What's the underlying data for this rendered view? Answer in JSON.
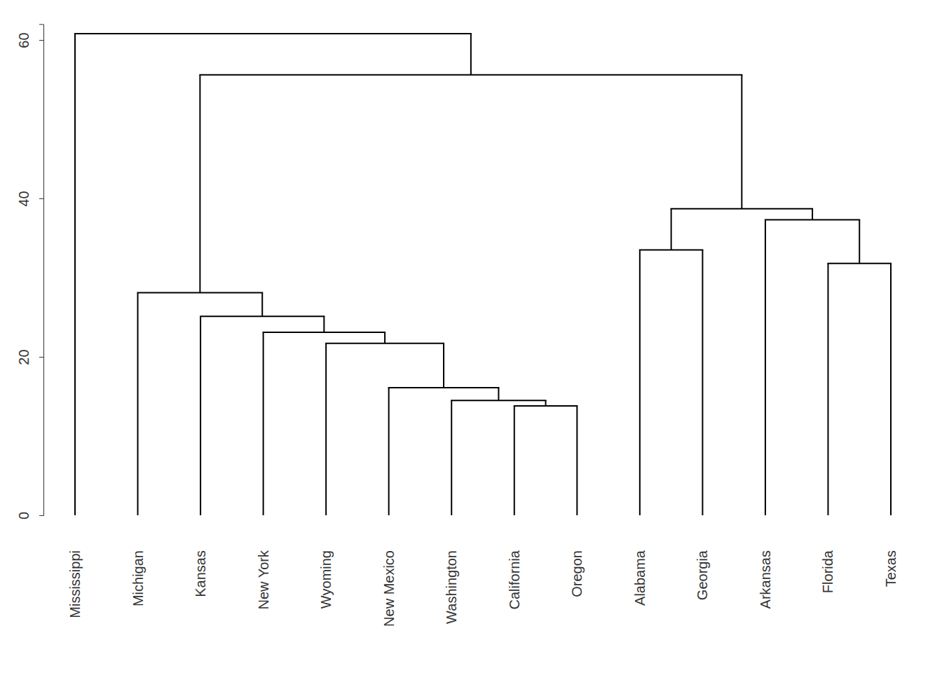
{
  "chart_data": {
    "type": "dendrogram",
    "ylim": [
      0,
      62
    ],
    "yticks": [
      0,
      20,
      40,
      60
    ],
    "tree": {
      "height": 60.8,
      "children": [
        {
          "label": "Mississippi"
        },
        {
          "height": 55.6,
          "children": [
            {
              "height": 28.1,
              "children": [
                {
                  "label": "Michigan"
                },
                {
                  "height": 25.1,
                  "children": [
                    {
                      "label": "Kansas"
                    },
                    {
                      "height": 23.1,
                      "children": [
                        {
                          "label": "New York"
                        },
                        {
                          "height": 21.7,
                          "children": [
                            {
                              "label": "Wyoming"
                            },
                            {
                              "height": 16.1,
                              "children": [
                                {
                                  "label": "New Mexico"
                                },
                                {
                                  "height": 14.5,
                                  "children": [
                                    {
                                      "label": "Washington"
                                    },
                                    {
                                      "height": 13.8,
                                      "children": [
                                        {
                                          "label": "California"
                                        },
                                        {
                                          "label": "Oregon"
                                        }
                                      ]
                                    }
                                  ]
                                }
                              ]
                            }
                          ]
                        }
                      ]
                    }
                  ]
                }
              ]
            },
            {
              "height": 38.7,
              "children": [
                {
                  "height": 33.5,
                  "children": [
                    {
                      "label": "Alabama"
                    },
                    {
                      "label": "Georgia"
                    }
                  ]
                },
                {
                  "height": 37.3,
                  "children": [
                    {
                      "label": "Arkansas"
                    },
                    {
                      "height": 31.8,
                      "children": [
                        {
                          "label": "Florida"
                        },
                        {
                          "label": "Texas"
                        }
                      ]
                    }
                  ]
                }
              ]
            }
          ]
        }
      ]
    }
  }
}
